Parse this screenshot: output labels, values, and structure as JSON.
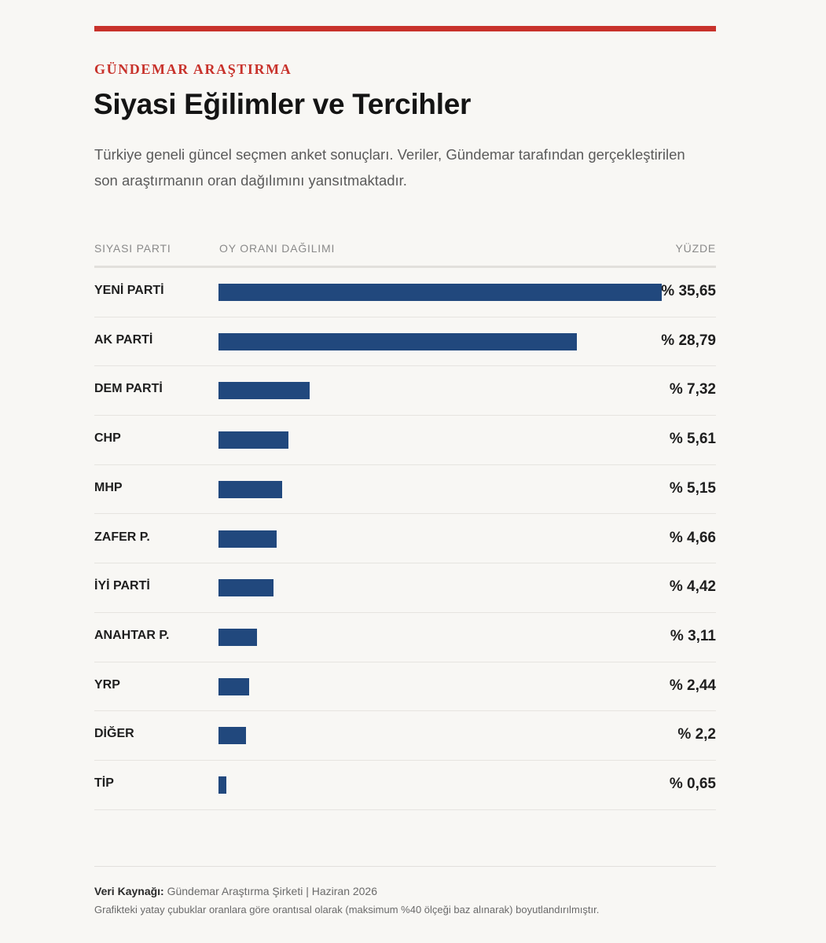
{
  "header": {
    "brand": "GÜNDEMAR ARAŞTIRMA",
    "title": "Siyasi Eğilimler ve Tercihler",
    "subtitle": "Türkiye geneli güncel seçmen anket sonuçları. Veriler, Gündemar tarafından gerçekleştirilen son araştırmanın oran dağılımını yansıtmaktadır."
  },
  "columns": {
    "party": "SIYASI PARTI",
    "distribution": "OY ORANI DAĞILIMI",
    "percent": "YÜZDE"
  },
  "colors": {
    "accent": "#c8322b",
    "bar": "#21487d"
  },
  "chart_data": {
    "type": "bar",
    "orientation": "horizontal",
    "xlim": [
      0,
      40
    ],
    "categories": [
      "YENİ PARTİ",
      "AK PARTİ",
      "DEM PARTİ",
      "CHP",
      "MHP",
      "ZAFER P.",
      "İYİ PARTİ",
      "ANAHTAR P.",
      "YRP",
      "DİĞER",
      "TİP"
    ],
    "values": [
      35.65,
      28.79,
      7.32,
      5.61,
      5.15,
      4.66,
      4.42,
      3.11,
      2.44,
      2.2,
      0.65
    ],
    "labels": [
      "% 35,65",
      "% 28,79",
      "% 7,32",
      "% 5,61",
      "% 5,15",
      "% 4,66",
      "% 4,42",
      "% 3,11",
      "% 2,44",
      "% 2,2",
      "% 0,65"
    ]
  },
  "footer": {
    "source_label": "Veri Kaynağı:",
    "source_text": " Gündemar Araştırma Şirketi | Haziran 2026",
    "note": "Grafikteki yatay çubuklar oranlara göre orantısal olarak (maksimum %40 ölçeği baz alınarak) boyutlandırılmıştır."
  }
}
